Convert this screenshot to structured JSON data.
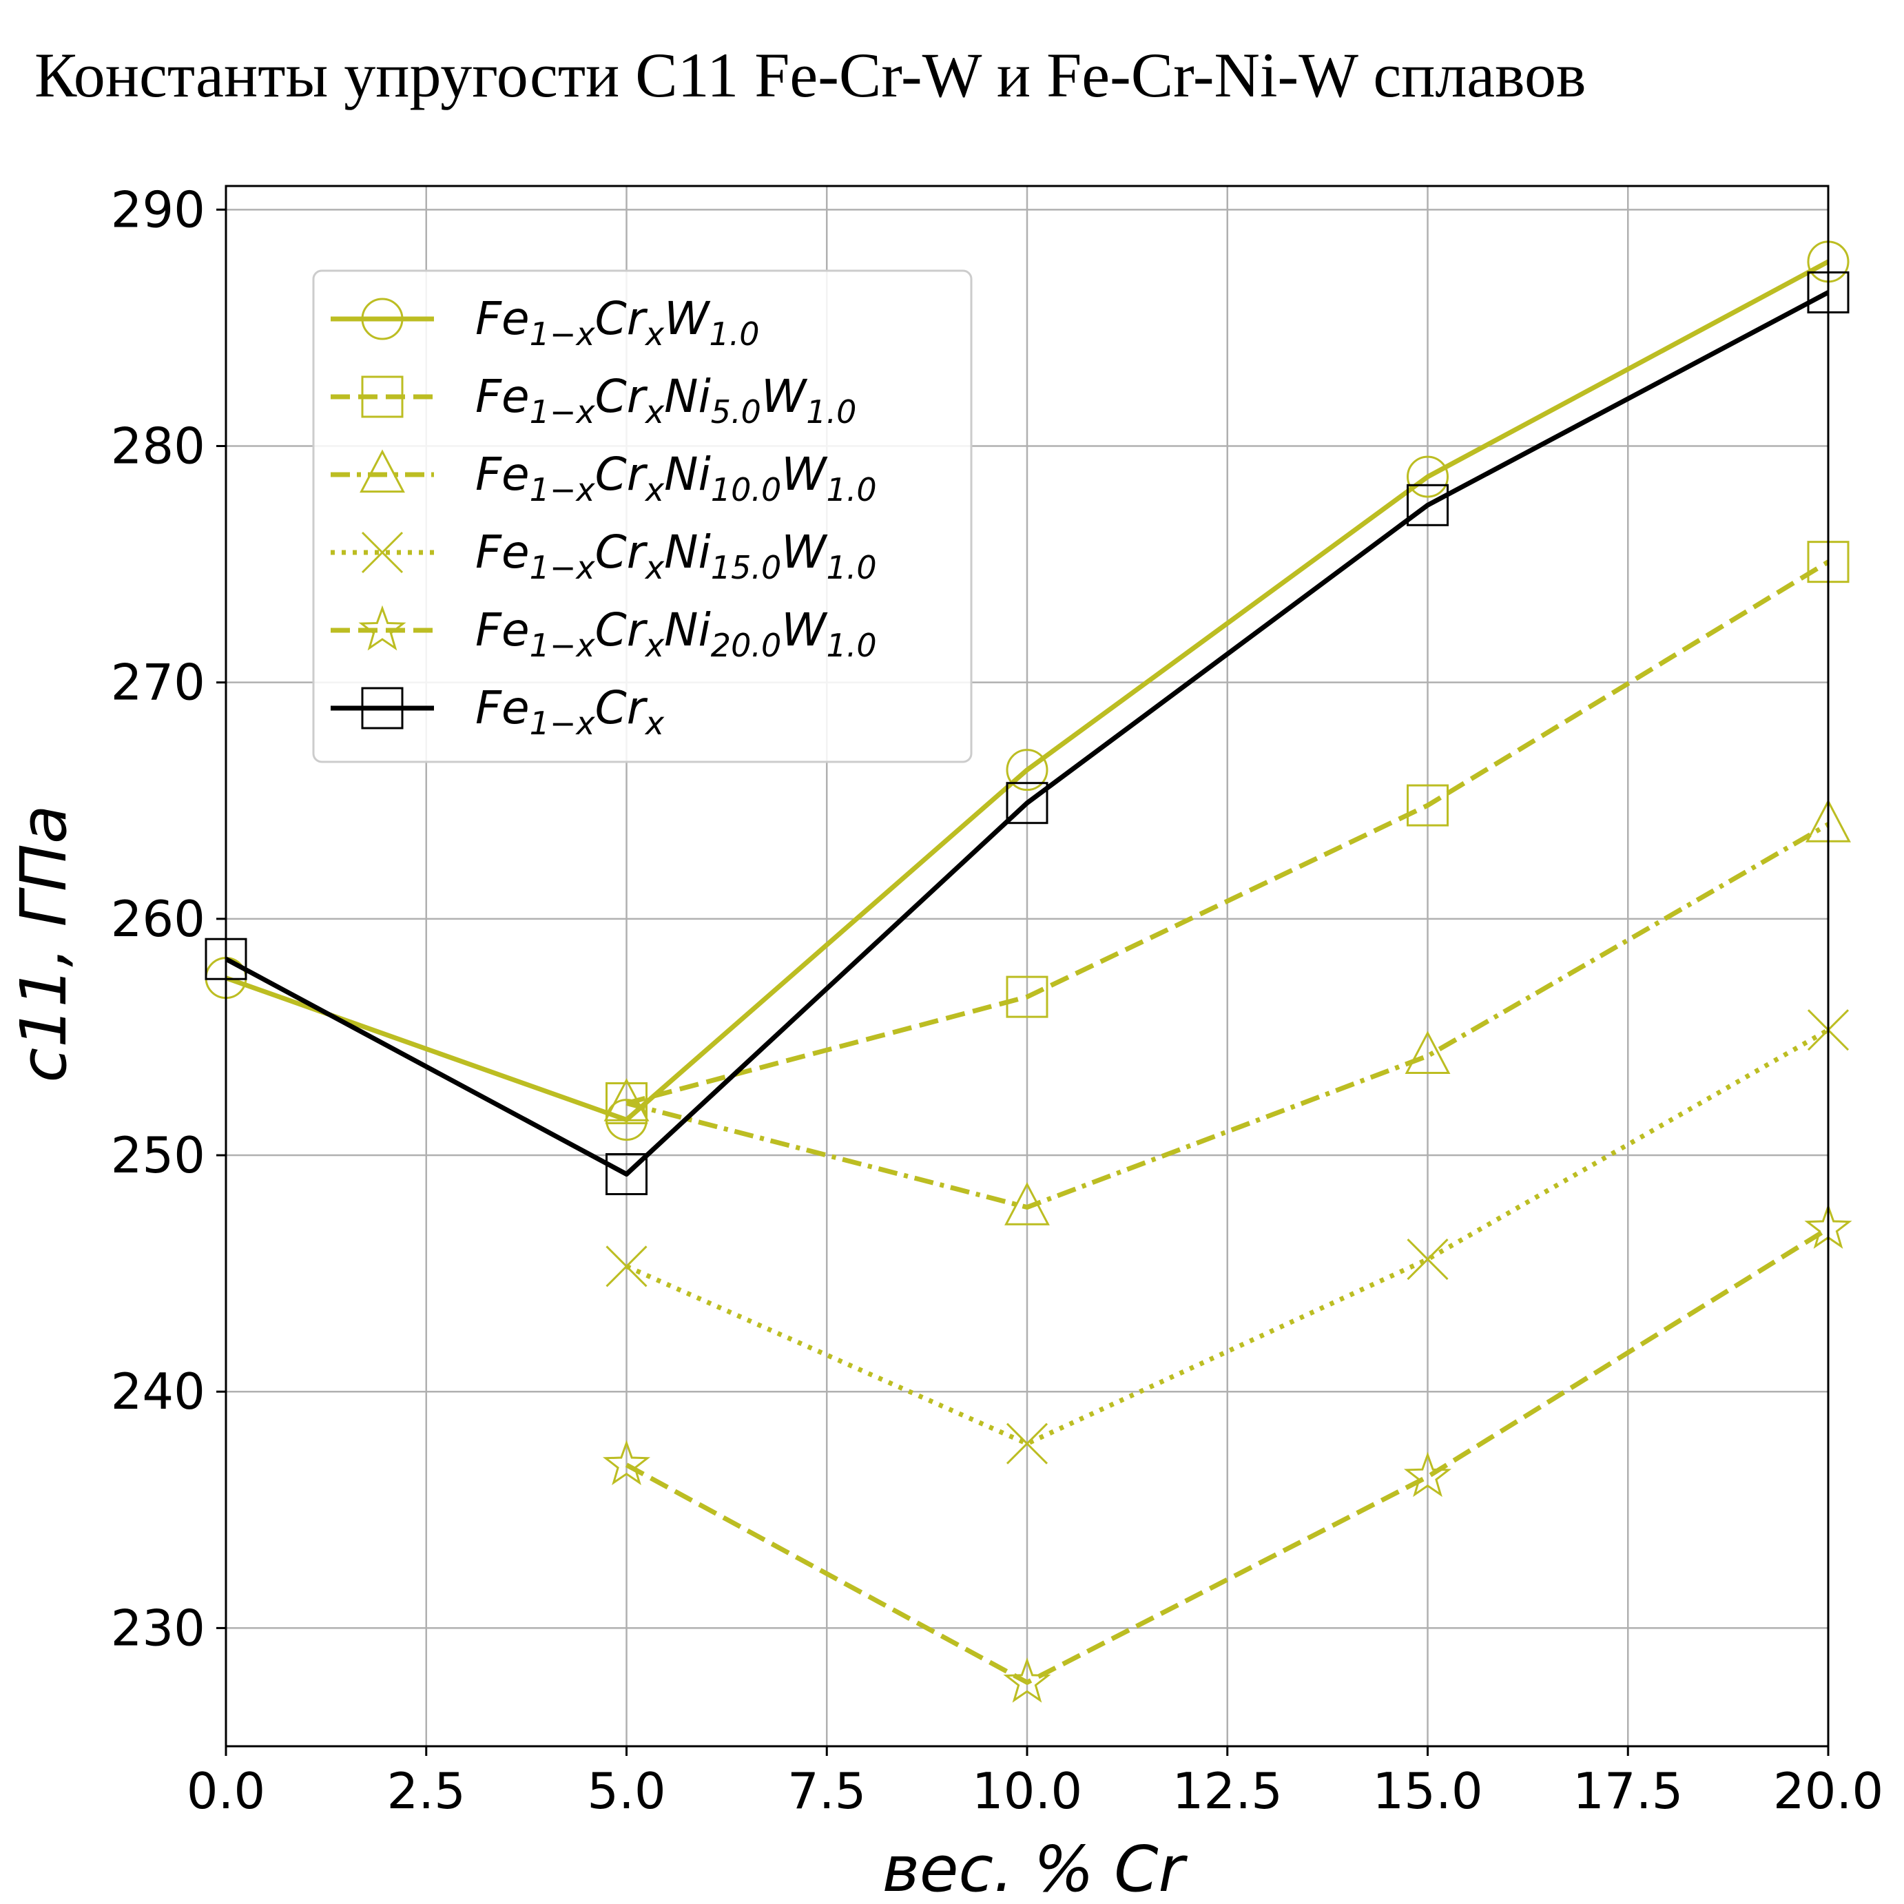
{
  "chart_data": {
    "type": "line",
    "title": "Константы упругости C11 Fe-Cr-W и Fe-Cr-Ni-W сплавов",
    "xlabel": "вес. % Cr",
    "ylabel": "c11, ГПа",
    "xlim": [
      0,
      20
    ],
    "ylim": [
      225,
      291
    ],
    "xticks": [
      0.0,
      2.5,
      5.0,
      7.5,
      10.0,
      12.5,
      15.0,
      17.5,
      20.0
    ],
    "xtick_labels": [
      "0.0",
      "2.5",
      "5.0",
      "7.5",
      "10.0",
      "12.5",
      "15.0",
      "17.5",
      "20.0"
    ],
    "yticks": [
      230,
      240,
      250,
      260,
      270,
      280,
      290
    ],
    "ytick_labels": [
      "230",
      "240",
      "250",
      "260",
      "270",
      "280",
      "290"
    ],
    "grid": true,
    "legend_position": "upper-left",
    "series": [
      {
        "name": "Fe1−xCrxW1.0",
        "color": "#bcbd22",
        "linestyle": "solid",
        "marker": "circle",
        "legend_parts": [
          {
            "t": "Fe",
            "s": "1−x"
          },
          {
            "t": "Cr",
            "s": "x"
          },
          {
            "t": "W",
            "s": "1.0"
          }
        ],
        "x": [
          0,
          5,
          10,
          15,
          20
        ],
        "y": [
          257.5,
          251.5,
          266.3,
          278.7,
          287.8
        ]
      },
      {
        "name": "Fe1−xCrxNi5.0W1.0",
        "color": "#bcbd22",
        "linestyle": "dashed",
        "marker": "square",
        "legend_parts": [
          {
            "t": "Fe",
            "s": "1−x"
          },
          {
            "t": "Cr",
            "s": "x"
          },
          {
            "t": "Ni",
            "s": "5.0"
          },
          {
            "t": "W",
            "s": "1.0"
          }
        ],
        "x": [
          5,
          10,
          15,
          20
        ],
        "y": [
          252.2,
          256.7,
          264.8,
          275.1
        ]
      },
      {
        "name": "Fe1−xCrxNi10.0W1.0",
        "color": "#bcbd22",
        "linestyle": "dashdot",
        "marker": "triangle",
        "legend_parts": [
          {
            "t": "Fe",
            "s": "1−x"
          },
          {
            "t": "Cr",
            "s": "x"
          },
          {
            "t": "Ni",
            "s": "10.0"
          },
          {
            "t": "W",
            "s": "1.0"
          }
        ],
        "x": [
          5,
          10,
          15,
          20
        ],
        "y": [
          252.2,
          247.8,
          254.2,
          264.0
        ]
      },
      {
        "name": "Fe1−xCrxNi15.0W1.0",
        "color": "#bcbd22",
        "linestyle": "dotted",
        "marker": "x",
        "legend_parts": [
          {
            "t": "Fe",
            "s": "1−x"
          },
          {
            "t": "Cr",
            "s": "x"
          },
          {
            "t": "Ni",
            "s": "15.0"
          },
          {
            "t": "W",
            "s": "1.0"
          }
        ],
        "x": [
          5,
          10,
          15,
          20
        ],
        "y": [
          245.3,
          237.8,
          245.6,
          255.3
        ]
      },
      {
        "name": "Fe1−xCrxNi20.0W1.0",
        "color": "#bcbd22",
        "linestyle": "dashed",
        "marker": "star",
        "legend_parts": [
          {
            "t": "Fe",
            "s": "1−x"
          },
          {
            "t": "Cr",
            "s": "x"
          },
          {
            "t": "Ni",
            "s": "20.0"
          },
          {
            "t": "W",
            "s": "1.0"
          }
        ],
        "x": [
          5,
          10,
          15,
          20
        ],
        "y": [
          236.9,
          227.7,
          236.4,
          246.9
        ]
      },
      {
        "name": "Fe1−xCrx",
        "color": "#000000",
        "linestyle": "solid",
        "marker": "square",
        "legend_parts": [
          {
            "t": "Fe",
            "s": "1−x"
          },
          {
            "t": "Cr",
            "s": "x"
          }
        ],
        "x": [
          0,
          5,
          10,
          15,
          20
        ],
        "y": [
          258.3,
          249.2,
          264.9,
          277.5,
          286.5
        ]
      }
    ]
  }
}
